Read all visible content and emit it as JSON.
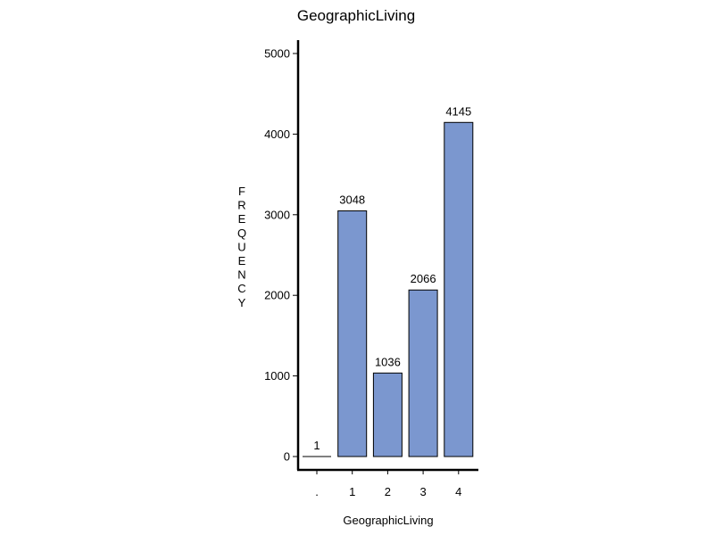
{
  "chart_data": {
    "type": "bar",
    "title": "GeographicLiving",
    "xlabel": "GeographicLiving",
    "ylabel": "FREQUENCY",
    "categories": [
      ".",
      "1",
      "2",
      "3",
      "4"
    ],
    "values": [
      1,
      3048,
      1036,
      2066,
      4145
    ],
    "data_labels": [
      "1",
      "3048",
      "1036",
      "2066",
      "4145"
    ],
    "ylim": [
      0,
      5000
    ],
    "yticks": [
      0,
      1000,
      2000,
      3000,
      4000,
      5000
    ],
    "ytick_labels": [
      "0",
      "1000",
      "2000",
      "3000",
      "4000",
      "5000"
    ],
    "bar_color": "#7b97cf",
    "grid": false,
    "legend": "none"
  }
}
